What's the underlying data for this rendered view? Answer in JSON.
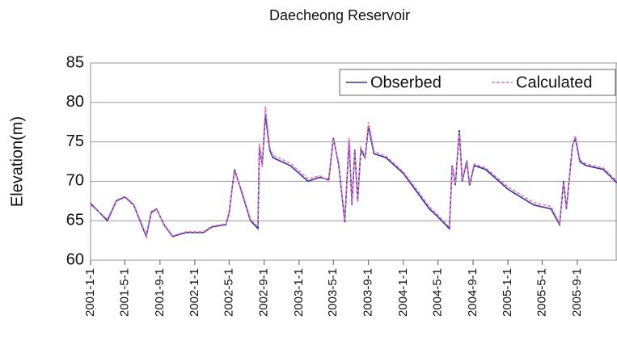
{
  "chart_data": {
    "type": "line",
    "title": "Daecheong Reservoir",
    "y_label": "Elevation(m)",
    "x": [
      "2001-1-1",
      "2001-3-1",
      "2001-4-1",
      "2001-5-1",
      "2001-6-1",
      "2001-7-15",
      "2001-8-1",
      "2001-8-20",
      "2001-9-15",
      "2001-10-15",
      "2001-12-1",
      "2002-2-1",
      "2002-3-1",
      "2002-4-20",
      "2002-5-1",
      "2002-5-20",
      "2002-6-15",
      "2002-7-15",
      "2002-8-10",
      "2002-8-15",
      "2002-8-25",
      "2002-9-5",
      "2002-9-20",
      "2002-10-1",
      "2002-12-1",
      "2003-2-1",
      "2003-3-15",
      "2003-4-15",
      "2003-5-1",
      "2003-5-20",
      "2003-6-10",
      "2003-6-25",
      "2003-7-5",
      "2003-7-15",
      "2003-7-25",
      "2003-8-5",
      "2003-8-20",
      "2003-9-1",
      "2003-9-20",
      "2003-11-1",
      "2004-1-1",
      "2004-4-1",
      "2004-5-1",
      "2004-6-10",
      "2004-6-20",
      "2004-7-1",
      "2004-7-15",
      "2004-7-25",
      "2004-8-10",
      "2004-8-20",
      "2004-9-5",
      "2004-10-15",
      "2005-1-1",
      "2005-4-1",
      "2005-6-1",
      "2005-7-1",
      "2005-7-15",
      "2005-7-25",
      "2005-8-15",
      "2005-8-25",
      "2005-9-10",
      "2005-10-1",
      "2005-12-1",
      "2006-1-18"
    ],
    "series": [
      {
        "name": "Obserbed",
        "color": "#33339a",
        "dashed": false,
        "values": [
          67.2,
          65.0,
          67.5,
          68.0,
          67.0,
          63.0,
          66.0,
          66.5,
          64.5,
          63.0,
          63.5,
          63.5,
          64.2,
          64.5,
          66.0,
          71.5,
          68.5,
          65.0,
          64.0,
          74.5,
          72.0,
          78.5,
          74.0,
          73.0,
          72.0,
          70.0,
          70.5,
          70.2,
          75.5,
          72.0,
          64.8,
          75.3,
          67.0,
          74.0,
          67.5,
          74.0,
          73.0,
          77.0,
          73.5,
          73.0,
          71.0,
          66.5,
          65.5,
          64.0,
          72.0,
          69.5,
          76.5,
          70.0,
          72.5,
          69.5,
          72.0,
          71.5,
          69.0,
          67.0,
          66.5,
          64.5,
          70.0,
          66.5,
          74.5,
          75.5,
          72.5,
          72.0,
          71.5,
          69.8
        ]
      },
      {
        "name": "Calculated",
        "color": "#e07ac0",
        "dashed": true,
        "values": [
          67.0,
          65.2,
          67.6,
          68.1,
          67.1,
          63.2,
          66.2,
          66.4,
          64.6,
          63.1,
          63.6,
          63.6,
          64.3,
          64.6,
          66.2,
          71.3,
          68.7,
          65.2,
          64.2,
          74.8,
          71.8,
          79.5,
          74.3,
          73.3,
          72.3,
          70.3,
          70.7,
          70.0,
          75.3,
          72.3,
          65.0,
          75.5,
          67.2,
          73.8,
          67.3,
          74.3,
          73.2,
          77.5,
          73.8,
          73.2,
          71.2,
          66.8,
          65.7,
          64.2,
          71.8,
          69.7,
          76.2,
          70.2,
          72.7,
          69.7,
          72.2,
          71.7,
          69.3,
          67.3,
          66.8,
          64.7,
          69.8,
          66.7,
          74.3,
          75.8,
          72.7,
          72.2,
          71.7,
          70.0
        ]
      }
    ],
    "xlim": [
      "2001-1-1",
      "2006-1-18"
    ],
    "xticks": [
      "2001-1-1",
      "2001-5-1",
      "2001-9-1",
      "2002-1-1",
      "2002-5-1",
      "2002-9-1",
      "2003-1-1",
      "2003-5-1",
      "2003-9-1",
      "2004-1-1",
      "2004-5-1",
      "2004-9-1",
      "2005-1-1",
      "2005-5-1",
      "2005-9-1"
    ],
    "ylim": [
      60,
      85
    ],
    "yticks": [
      60,
      65,
      70,
      75,
      80,
      85
    ],
    "grid": true,
    "legend": "upper right"
  }
}
